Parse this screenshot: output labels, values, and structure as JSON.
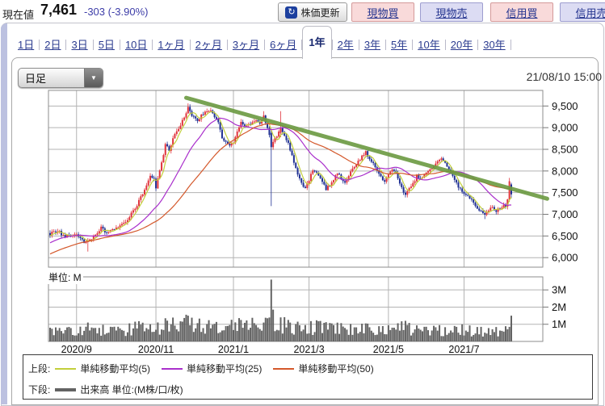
{
  "header": {
    "label": "現在値",
    "price": "7,461",
    "change": "-303 (-3.90%)",
    "refresh_label": "株価更新",
    "refresh_icon": "refresh-circle-arrow",
    "trade_buttons": [
      {
        "label": "現物買",
        "kind": "buy",
        "name": "spot-buy-button"
      },
      {
        "label": "現物売",
        "kind": "sell",
        "name": "spot-sell-button"
      },
      {
        "label": "信用買",
        "kind": "buy",
        "name": "margin-buy-button"
      },
      {
        "label": "信用売",
        "kind": "sell",
        "name": "margin-sell-button"
      }
    ],
    "colors": {
      "buy_bg": "#f9dada",
      "sell_bg": "#dcdcf3",
      "link_text": "#23338f",
      "change_text": "#3d3da8"
    }
  },
  "tabs": {
    "items": [
      "1日",
      "2日",
      "3日",
      "5日",
      "10日",
      "1ヶ月",
      "2ヶ月",
      "3ヶ月",
      "6ヶ月",
      "1年",
      "2年",
      "3年",
      "5年",
      "10年",
      "20年",
      "30年"
    ],
    "selected": "1年"
  },
  "toolbar": {
    "interval_label": "日足",
    "timestamp": "21/08/10 15:00"
  },
  "legend": {
    "upper_label": "上段:",
    "items": [
      {
        "label": "単純移動平均(5)",
        "color": "#c2cf3b"
      },
      {
        "label": "単純移動平均(25)",
        "color": "#aa30cc"
      },
      {
        "label": "単純移動平均(50)",
        "color": "#d4582b"
      }
    ],
    "lower_label": "下段:",
    "volume_item": {
      "label": "出来高 単位:(M株/口/枚)",
      "color": "#636363"
    }
  },
  "chart_data": {
    "type": "candlestick+volume",
    "x_axis": {
      "gridline_indices": [
        14,
        56,
        97,
        137,
        179,
        219
      ],
      "labels": [
        "2020/9",
        "2020/11",
        "2021/1",
        "2021/3",
        "2021/5",
        "2021/7"
      ]
    },
    "price_axis": {
      "ticks": [
        9500,
        9000,
        8500,
        8000,
        7500,
        7000,
        6500,
        6000
      ],
      "labels": [
        "9,500",
        "9,000",
        "8,500",
        "8,000",
        "7,500",
        "7,000",
        "6,500",
        "6,000"
      ],
      "range": [
        5780,
        9860
      ]
    },
    "volume_axis": {
      "ticks": [
        3,
        2,
        1
      ],
      "labels": [
        "3M",
        "2M",
        "1M"
      ],
      "range": [
        0,
        3.76
      ],
      "unit_label": "単位: M"
    },
    "ma_periods": [
      5,
      25,
      50
    ],
    "colors": {
      "up": "#e0333c",
      "down": "#1f3093",
      "ma5": "#c2cf3b",
      "ma25": "#aa30cc",
      "ma50": "#d4582b",
      "volume": "#636363",
      "grid": "#b3b3b3",
      "border": "#8c8c8c",
      "trend": "#6b9a41"
    },
    "trendline": {
      "start_index": 72,
      "start_price": 9690,
      "end_index": 263,
      "end_price": 7360
    },
    "num_candles": 245,
    "pre_anchors": [
      [
        -50,
        5600
      ],
      [
        -40,
        5760
      ],
      [
        -30,
        5950
      ],
      [
        -20,
        6180
      ],
      [
        -10,
        6420
      ],
      [
        -1,
        6520
      ]
    ],
    "close_anchors": [
      [
        0,
        6550
      ],
      [
        4,
        6620
      ],
      [
        8,
        6480
      ],
      [
        12,
        6520
      ],
      [
        15,
        6500
      ],
      [
        18,
        6340
      ],
      [
        21,
        6420
      ],
      [
        24,
        6500
      ],
      [
        27,
        6690
      ],
      [
        30,
        6560
      ],
      [
        33,
        6640
      ],
      [
        36,
        6700
      ],
      [
        39,
        6780
      ],
      [
        42,
        6950
      ],
      [
        45,
        7120
      ],
      [
        47,
        7300
      ],
      [
        49,
        7480
      ],
      [
        51,
        7700
      ],
      [
        53,
        7890
      ],
      [
        55,
        7800
      ],
      [
        56,
        7620
      ],
      [
        58,
        8000
      ],
      [
        60,
        8400
      ],
      [
        61,
        8650
      ],
      [
        63,
        8480
      ],
      [
        65,
        8750
      ],
      [
        67,
        8950
      ],
      [
        69,
        9050
      ],
      [
        71,
        9250
      ],
      [
        73,
        9480
      ],
      [
        75,
        9300
      ],
      [
        78,
        9180
      ],
      [
        80,
        9280
      ],
      [
        82,
        9350
      ],
      [
        85,
        9400
      ],
      [
        87,
        9250
      ],
      [
        89,
        9100
      ],
      [
        91,
        8780
      ],
      [
        93,
        8650
      ],
      [
        95,
        8600
      ],
      [
        97,
        8680
      ],
      [
        99,
        8900
      ],
      [
        101,
        9100
      ],
      [
        103,
        9000
      ],
      [
        105,
        9080
      ],
      [
        107,
        9120
      ],
      [
        109,
        9180
      ],
      [
        111,
        9120
      ],
      [
        113,
        9280
      ],
      [
        115,
        9000
      ],
      [
        116,
        8850
      ],
      [
        117,
        8550
      ],
      [
        119,
        8750
      ],
      [
        121,
        8900
      ],
      [
        122,
        9000
      ],
      [
        124,
        8820
      ],
      [
        126,
        8650
      ],
      [
        128,
        8350
      ],
      [
        130,
        8050
      ],
      [
        131,
        7900
      ],
      [
        133,
        7700
      ],
      [
        135,
        7620
      ],
      [
        137,
        7800
      ],
      [
        139,
        8000
      ],
      [
        141,
        7950
      ],
      [
        143,
        7850
      ],
      [
        145,
        7700
      ],
      [
        146,
        7580
      ],
      [
        148,
        7680
      ],
      [
        150,
        7820
      ],
      [
        152,
        7950
      ],
      [
        154,
        7830
      ],
      [
        156,
        7700
      ],
      [
        158,
        7900
      ],
      [
        161,
        8100
      ],
      [
        164,
        8280
      ],
      [
        167,
        8430
      ],
      [
        169,
        8300
      ],
      [
        171,
        8150
      ],
      [
        173,
        8000
      ],
      [
        175,
        7880
      ],
      [
        177,
        7760
      ],
      [
        179,
        7920
      ],
      [
        181,
        8050
      ],
      [
        183,
        7950
      ],
      [
        185,
        7700
      ],
      [
        187,
        7520
      ],
      [
        188,
        7450
      ],
      [
        190,
        7600
      ],
      [
        192,
        7700
      ],
      [
        194,
        7880
      ],
      [
        196,
        7820
      ],
      [
        198,
        7900
      ],
      [
        200,
        8000
      ],
      [
        202,
        8080
      ],
      [
        204,
        8150
      ],
      [
        206,
        8280
      ],
      [
        208,
        8230
      ],
      [
        210,
        8100
      ],
      [
        212,
        7950
      ],
      [
        214,
        7800
      ],
      [
        216,
        7650
      ],
      [
        218,
        7520
      ],
      [
        220,
        7450
      ],
      [
        222,
        7380
      ],
      [
        224,
        7250
      ],
      [
        226,
        7150
      ],
      [
        228,
        7080
      ],
      [
        230,
        6990
      ],
      [
        232,
        7120
      ],
      [
        234,
        7180
      ],
      [
        236,
        7060
      ],
      [
        238,
        7150
      ],
      [
        240,
        7220
      ],
      [
        241,
        7150
      ],
      [
        242,
        7320
      ],
      [
        243,
        7764
      ],
      [
        244,
        7461
      ]
    ],
    "candle_overrides": {
      "20": {
        "low": 6140
      },
      "73": {
        "high": 9560
      },
      "85": {
        "high": 9460
      },
      "113": {
        "high": 9380
      },
      "117": {
        "open": 8880,
        "high": 8950,
        "low": 7190,
        "close": 8550
      },
      "122": {
        "open": 8880,
        "high": 9380,
        "low": 8780,
        "close": 9000
      },
      "188": {
        "low": 7390
      },
      "230": {
        "low": 6890
      },
      "243": {
        "open": 7340,
        "high": 7840,
        "low": 7290,
        "close": 7764
      },
      "244": {
        "open": 7690,
        "high": 7730,
        "low": 7370,
        "close": 7461
      }
    },
    "volume_anchors": [
      [
        0,
        0.55
      ],
      [
        15,
        0.6
      ],
      [
        25,
        0.62
      ],
      [
        40,
        0.68
      ],
      [
        47,
        0.85
      ],
      [
        55,
        0.75
      ],
      [
        61,
        0.95
      ],
      [
        70,
        0.9
      ],
      [
        73,
        1.05
      ],
      [
        80,
        0.85
      ],
      [
        90,
        0.75
      ],
      [
        100,
        0.9
      ],
      [
        110,
        0.85
      ],
      [
        117,
        1.0
      ],
      [
        126,
        0.85
      ],
      [
        135,
        0.8
      ],
      [
        145,
        0.75
      ],
      [
        155,
        0.7
      ],
      [
        165,
        0.75
      ],
      [
        175,
        0.7
      ],
      [
        185,
        0.75
      ],
      [
        195,
        0.65
      ],
      [
        205,
        0.7
      ],
      [
        215,
        0.65
      ],
      [
        225,
        0.6
      ],
      [
        235,
        0.55
      ],
      [
        242,
        0.6
      ],
      [
        244,
        0.9
      ]
    ],
    "volume_overrides": {
      "20": 1.1,
      "45": 1.15,
      "61": 1.35,
      "73": 1.5,
      "101": 1.25,
      "113": 1.1,
      "117": 3.6,
      "118": 1.85,
      "122": 1.4,
      "131": 1.15,
      "150": 0.95,
      "167": 1.05,
      "188": 1.2,
      "206": 0.95,
      "228": 0.85,
      "243": 0.85,
      "244": 1.5
    }
  }
}
